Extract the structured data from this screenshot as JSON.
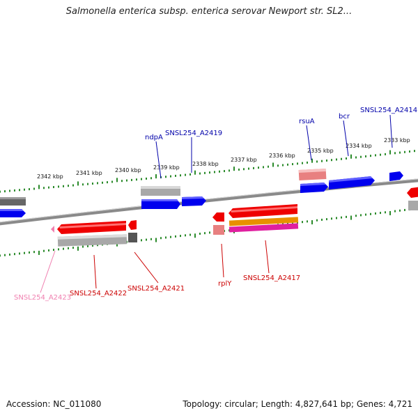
{
  "title": "Salmonella enterica subsp. enterica serovar Newport str. SL2...",
  "accession_text": "Accession: NC_011080",
  "topology_text": "Topology: circular; Length: 4,827,641 bp; Genes: 4,721",
  "colors": {
    "forward_cds": "#0000ee",
    "reverse_cds": "#ee0000",
    "feature_gray": "#a8a8a8",
    "feature_dark": "#666666",
    "feature_pink": "#e88080",
    "rrna_orange": "#e89000",
    "rrna_magenta": "#e020a0",
    "tick_green": "#2a8a2a",
    "backbone": "#8a8a8a",
    "label_forward": "#0000aa",
    "label_reverse": "#cc0000",
    "label_pseudo": "#f080b0"
  },
  "scale_ticks": [
    "2342 kbp",
    "2341 kbp",
    "2340 kbp",
    "2339 kbp",
    "2338 kbp",
    "2337 kbp",
    "2336 kbp",
    "2335 kbp",
    "2334 kbp",
    "2333 kbp"
  ],
  "gene_labels": {
    "forward": [
      "ndpA",
      "SNSL254_A2419",
      "rsuA",
      "bcr",
      "SNSL254_A2414"
    ],
    "reverse": [
      "SNSL254_A2422",
      "SNSL254_A2421",
      "rplY",
      "SNSL254_A2417"
    ],
    "pseudo": [
      "SNSL254_A2423"
    ]
  }
}
